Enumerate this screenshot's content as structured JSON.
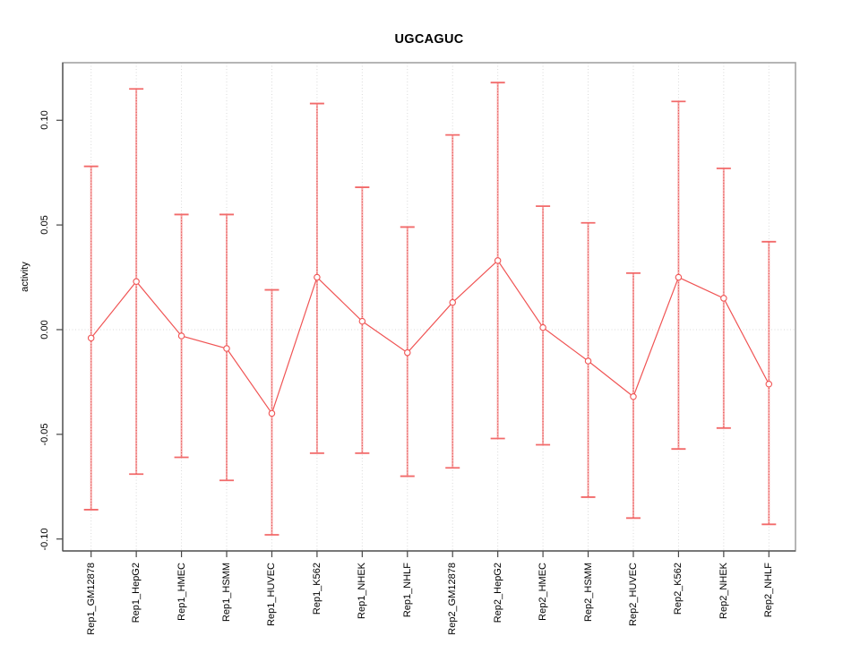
{
  "chart_data": {
    "type": "line",
    "title": "UGCAGUC",
    "xlabel": "",
    "ylabel": "activity",
    "legend_position": "none",
    "categories": [
      "Rep1_GM12878",
      "Rep1_HepG2",
      "Rep1_HMEC",
      "Rep1_HSMM",
      "Rep1_HUVEC",
      "Rep1_K562",
      "Rep1_NHEK",
      "Rep1_NHLF",
      "Rep2_GM12878",
      "Rep2_HepG2",
      "Rep2_HMEC",
      "Rep2_HSMM",
      "Rep2_HUVEC",
      "Rep2_K562",
      "Rep2_NHEK",
      "Rep2_NHLF"
    ],
    "series": [
      {
        "name": "activity",
        "marker": "open-circle",
        "values": [
          -0.004,
          0.023,
          -0.003,
          -0.009,
          -0.04,
          0.025,
          0.004,
          -0.011,
          0.013,
          0.033,
          0.001,
          -0.015,
          -0.032,
          0.025,
          0.015,
          -0.026
        ],
        "upper": [
          0.078,
          0.115,
          0.055,
          0.055,
          0.019,
          0.108,
          0.068,
          0.049,
          0.093,
          0.118,
          0.059,
          0.051,
          0.027,
          0.109,
          0.077,
          0.042
        ],
        "lower": [
          -0.086,
          -0.069,
          -0.061,
          -0.072,
          -0.098,
          -0.059,
          -0.059,
          -0.07,
          -0.066,
          -0.052,
          -0.055,
          -0.08,
          -0.09,
          -0.057,
          -0.047,
          -0.093
        ]
      }
    ],
    "yticks": {
      "values": [
        0.1,
        0.05,
        0.0,
        -0.05,
        -0.1
      ],
      "labels": [
        "0.10",
        "0.05",
        "0.00",
        "-0.05",
        "-0.10"
      ]
    },
    "ylim": [
      -0.1057,
      0.1275
    ],
    "grid": {
      "vertical": "dotted line at every category",
      "horizontal": "dotted line at zero only"
    },
    "colors": {
      "series": "#f05454",
      "errorbar_fill": "#f7a8a8",
      "errorbar_dot": "#e04848",
      "cap": "#f26a6a",
      "grid": "#d9d9d9",
      "box": "#a3a3a3",
      "axis": "#474747",
      "text": "#000000",
      "background": "#ffffff"
    }
  }
}
